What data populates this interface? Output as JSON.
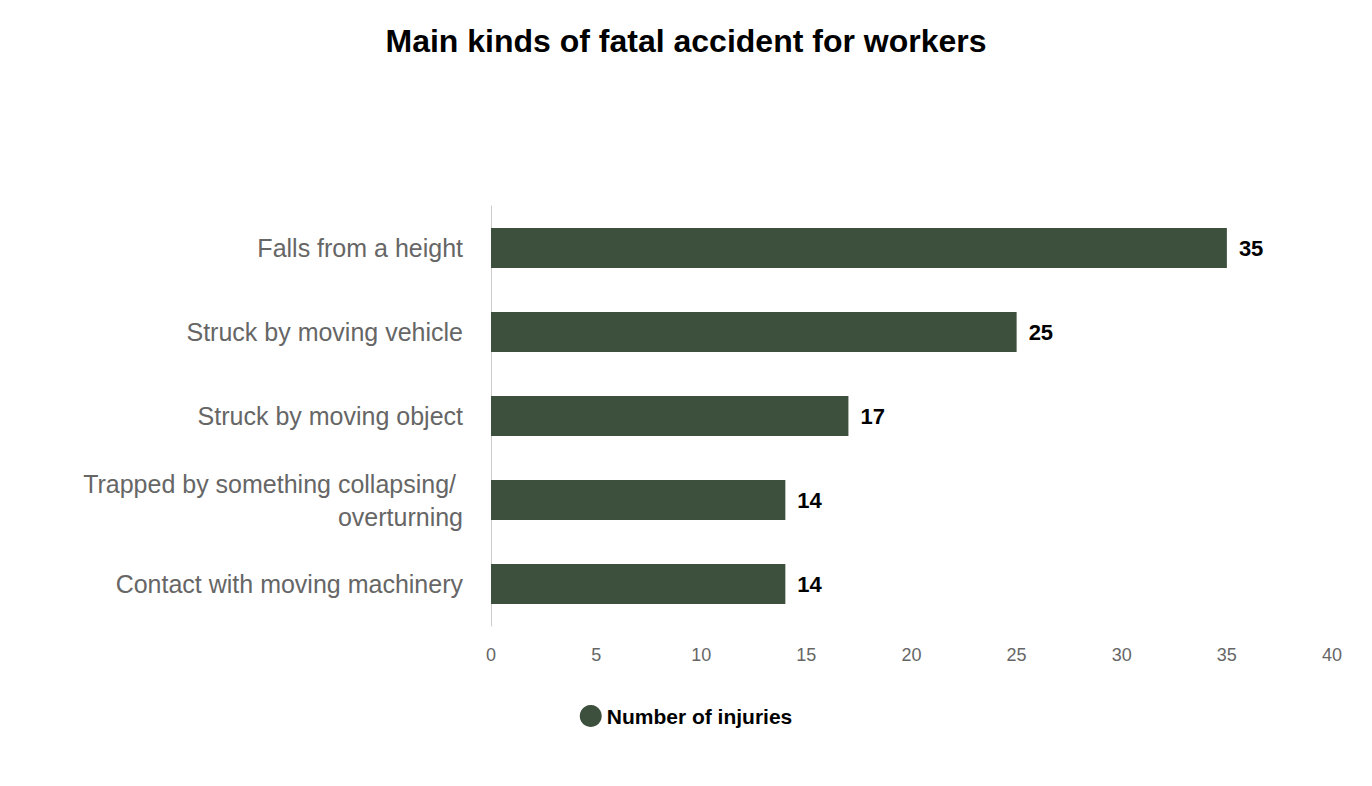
{
  "chart_data": {
    "type": "bar",
    "title": "Main kinds of fatal accident for workers",
    "orientation": "horizontal",
    "categories": [
      "Falls from a height",
      "Struck by moving vehicle",
      "Struck by moving object",
      "Trapped by something collapsing/ overturning",
      "Contact with moving machinery"
    ],
    "series": [
      {
        "name": "Number of injuries",
        "color": "#3d4f3d",
        "values": [
          35,
          25,
          17,
          14,
          14
        ]
      }
    ],
    "xlim": [
      0,
      40
    ],
    "xticks": [
      0,
      5,
      10,
      15,
      20,
      25,
      30,
      35,
      40
    ],
    "grid": false,
    "data_labels": true,
    "legend": "bottom"
  }
}
